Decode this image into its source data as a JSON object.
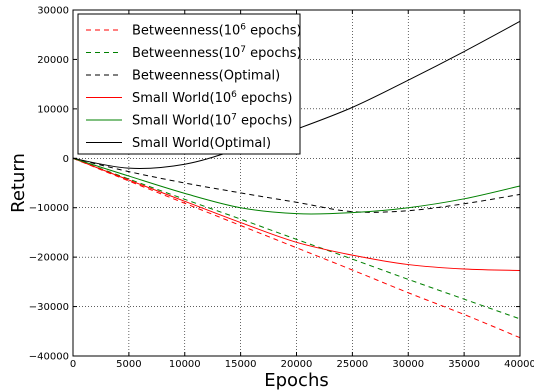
{
  "chart_data": {
    "type": "line",
    "xlabel": "Epochs",
    "ylabel": "Return",
    "xlim": [
      0,
      40000
    ],
    "ylim": [
      -40000,
      30000
    ],
    "xticks": [
      0,
      5000,
      10000,
      15000,
      20000,
      25000,
      30000,
      35000,
      40000
    ],
    "xtick_labels": [
      "0",
      "5000",
      "10000",
      "15000",
      "20000",
      "25000",
      "30000",
      "35000",
      "40000"
    ],
    "yticks": [
      -40000,
      -30000,
      -20000,
      -10000,
      0,
      10000,
      20000,
      30000
    ],
    "ytick_labels": [
      "−40000",
      "−30000",
      "−20000",
      "−10000",
      "0",
      "10000",
      "20000",
      "30000"
    ],
    "grid": true,
    "legend_position": "top-left",
    "x": [
      0,
      5000,
      10000,
      15000,
      20000,
      25000,
      30000,
      35000,
      40000
    ],
    "series": [
      {
        "name_main": "Betweenness(10",
        "name_sup": "6",
        "name_tail": " epochs)",
        "color": "#ff0000",
        "dash": true,
        "values": [
          0,
          -4600,
          -9100,
          -13600,
          -18100,
          -22600,
          -27200,
          -31600,
          -36300
        ]
      },
      {
        "name_main": "Betweenness(10",
        "name_sup": "7",
        "name_tail": " epochs)",
        "color": "#008000",
        "dash": true,
        "values": [
          0,
          -4200,
          -8300,
          -12300,
          -16400,
          -20400,
          -24500,
          -28500,
          -32500
        ]
      },
      {
        "name_main": "Betweenness(Optimal)",
        "name_sup": "",
        "name_tail": "",
        "color": "#000000",
        "dash": true,
        "values": [
          0,
          -2700,
          -5000,
          -7000,
          -8900,
          -10800,
          -10600,
          -9200,
          -7300
        ]
      },
      {
        "name_main": "Small World(10",
        "name_sup": "6",
        "name_tail": " epochs)",
        "color": "#ff0000",
        "dash": false,
        "values": [
          0,
          -4400,
          -8700,
          -13000,
          -17000,
          -19600,
          -21500,
          -22400,
          -22700
        ]
      },
      {
        "name_main": "Small World(10",
        "name_sup": "7",
        "name_tail": " epochs)",
        "color": "#008000",
        "dash": false,
        "values": [
          0,
          -3600,
          -7100,
          -10000,
          -11200,
          -11000,
          -10000,
          -8200,
          -5600
        ]
      },
      {
        "name_main": "Small World(Optimal)",
        "name_sup": "",
        "name_tail": "",
        "color": "#000000",
        "dash": false,
        "values": [
          0,
          -2000,
          -1200,
          2000,
          5900,
          10300,
          15800,
          21600,
          27700
        ]
      }
    ]
  }
}
